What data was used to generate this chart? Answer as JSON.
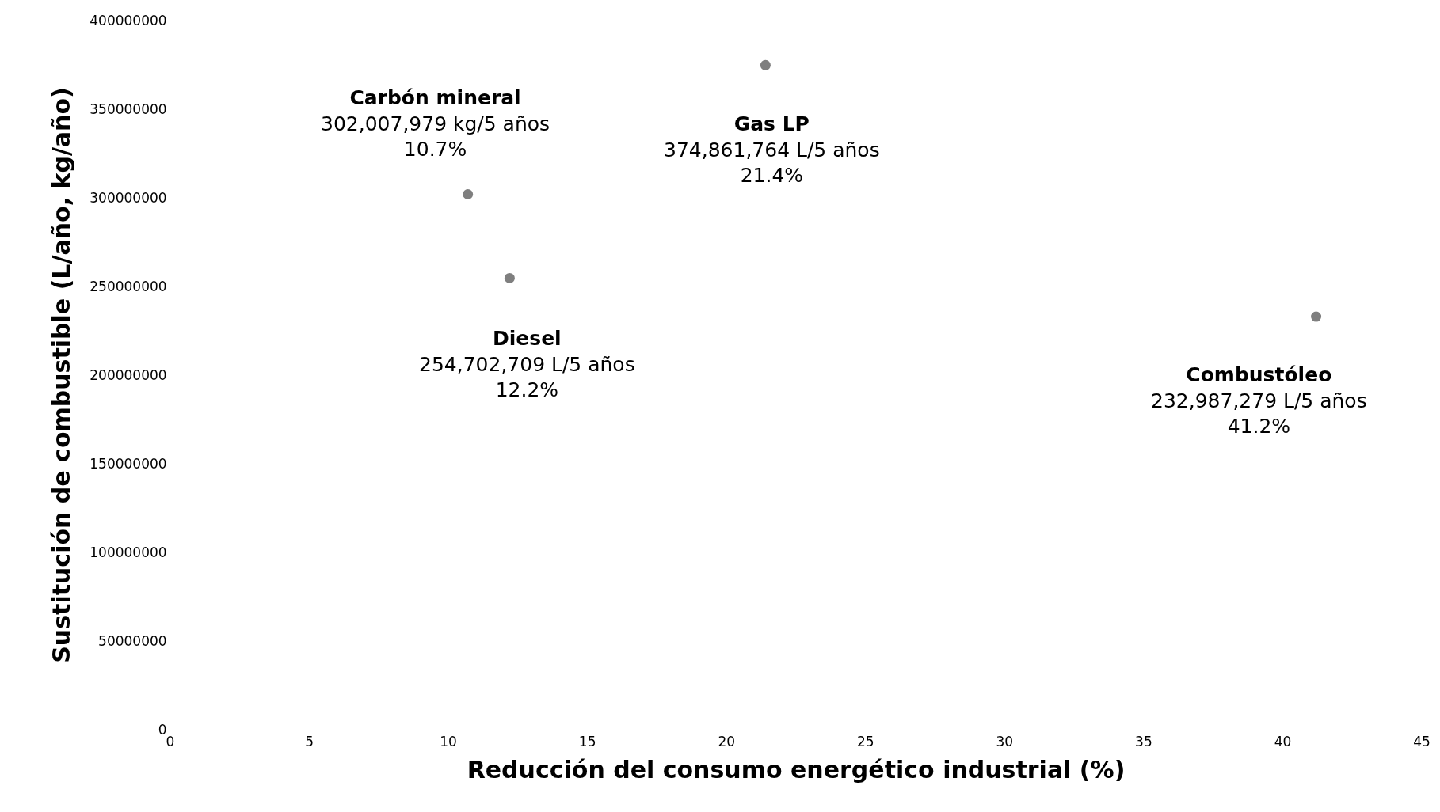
{
  "chart_data": {
    "type": "scatter",
    "xlabel": "Reducción del consumo energético industrial (%)",
    "ylabel": "Sustitución de combustible (L/año, kg/año)",
    "x": [
      10.7,
      12.2,
      21.4,
      41.2
    ],
    "values": [
      302007979,
      254702709,
      374861764,
      232987279
    ],
    "color": "#7f7f7f",
    "marker": "circle",
    "xlim": [
      0,
      45
    ],
    "xticks": [
      0,
      5,
      10,
      15,
      20,
      25,
      30,
      35,
      40,
      45
    ],
    "ylim": [
      0,
      400000000
    ],
    "yticks": [
      0,
      50000000,
      100000000,
      150000000,
      200000000,
      250000000,
      300000000,
      350000000,
      400000000
    ],
    "annotations": [
      {
        "text": "Carbón mineral\n302,007,979 kg/5 años\n10.7%",
        "x": 10.7,
        "y": 302007979
      },
      {
        "text": "Diesel\n254,702,709 L/5 años\n12.2%",
        "x": 12.2,
        "y": 254702709
      },
      {
        "text": "Gas LP\n374,861,764 L/5 años\n21.4%",
        "x": 21.4,
        "y": 374861764
      },
      {
        "text": "Combustóleo\n232,987,279 L/5 años\n41.2%",
        "x": 41.2,
        "y": 232987279
      }
    ]
  }
}
